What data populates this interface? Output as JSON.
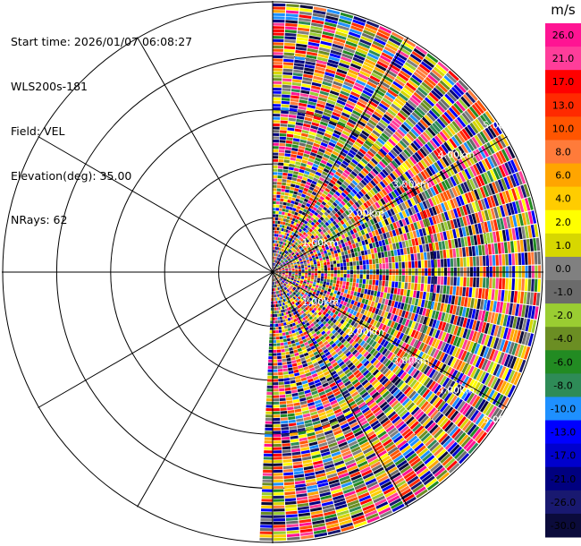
{
  "header": {
    "start_time": "Start time: 2026/01/07 06:08:27",
    "instrument": "WLS200s-181",
    "field": "Field: VEL",
    "elevation": "Elevation(deg): 35.00",
    "nrays": "NRays: 62"
  },
  "chart_data": {
    "type": "heatmap",
    "projection": "polar-ppi",
    "field": "VEL",
    "unit": "m/s",
    "azimuth_range_deg": [
      0,
      180
    ],
    "n_rays": 62,
    "range_rings_km": [
      {
        "value": 1,
        "label": "1.00km"
      },
      {
        "value": 2,
        "label": "2.00km"
      },
      {
        "value": 3,
        "label": "3.00km"
      },
      {
        "value": 4,
        "label": "4.00km"
      },
      {
        "value": 5,
        "label": "5.00km"
      }
    ],
    "max_range_km": 5.0,
    "colorbar": {
      "unit_label": "m/s",
      "tick_labels": [
        "26.0",
        "21.0",
        "17.0",
        "13.0",
        "10.0",
        "8.0",
        "6.0",
        "4.0",
        "2.0",
        "1.0",
        "0.0",
        "-1.0",
        "-2.0",
        "-4.0",
        "-6.0",
        "-8.0",
        "-10.0",
        "-13.0",
        "-17.0",
        "-21.0",
        "-26.0",
        "-30.0"
      ],
      "colors": [
        "#ff1493",
        "#ff3d9a",
        "#ff0000",
        "#ff2a00",
        "#ff5500",
        "#ff7b3a",
        "#ffa500",
        "#ffcc00",
        "#ffff00",
        "#d7d700",
        "#808080",
        "#6b6b6b",
        "#9acd32",
        "#6b8e23",
        "#228b22",
        "#2e8b57",
        "#1e90ff",
        "#0000ff",
        "#0000cd",
        "#000080",
        "#191970",
        "#0b0b3b"
      ]
    }
  }
}
